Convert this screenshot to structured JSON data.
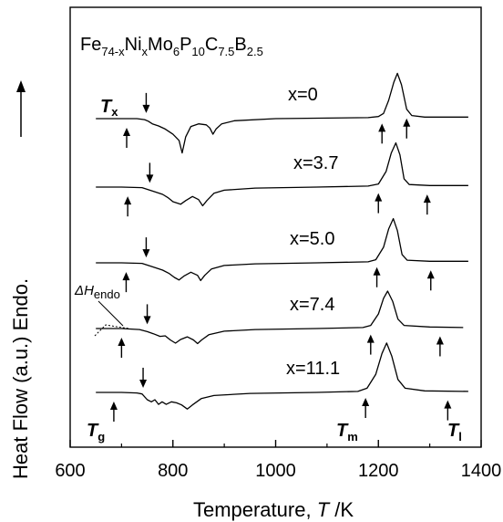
{
  "chart_data": {
    "type": "line",
    "title": "Fe74-xNixMo6P10C7.5B2.5",
    "title_parts": {
      "base": "Fe",
      "s1": "74-x",
      "n1": "Ni",
      "s2": "x",
      "n2": "Mo",
      "s3": "6",
      "n3": "P",
      "s4": "10",
      "n4": "C",
      "s5": "7.5",
      "n5": "B",
      "s6": "2.5"
    },
    "xlabel": "Temperature, T /K",
    "xlabel_parts": {
      "pre": "Temperature, ",
      "var": "T",
      "post": " /K"
    },
    "ylabel": "Heat Flow (a.u.) Endo.",
    "xlim": [
      600,
      1400
    ],
    "x_ticks": [
      600,
      800,
      1000,
      1200,
      1400
    ],
    "x_tick_labels": [
      "600",
      "800",
      "1000",
      "1200",
      "1400"
    ],
    "grid": false,
    "y_ticks_shown": false,
    "annotations": {
      "Tx": {
        "sym": "T",
        "sub": "x"
      },
      "Tg": {
        "sym": "T",
        "sub": "g"
      },
      "Tm": {
        "sym": "T",
        "sub": "m"
      },
      "Tl": {
        "sym": "T",
        "sub": "l"
      },
      "dH": {
        "sym": "ΔH",
        "sub": "endo"
      }
    },
    "series": [
      {
        "name": "x=0",
        "points": [
          [
            650,
            0
          ],
          [
            700,
            0
          ],
          [
            730,
            0
          ],
          [
            745,
            -0.2
          ],
          [
            752,
            -0.5
          ],
          [
            760,
            -1.0
          ],
          [
            772,
            -1.4
          ],
          [
            785,
            -2.0
          ],
          [
            800,
            -3.0
          ],
          [
            812,
            -4.2
          ],
          [
            818,
            -6.6
          ],
          [
            825,
            -3.5
          ],
          [
            835,
            -1.5
          ],
          [
            850,
            -1.0
          ],
          [
            865,
            -1.2
          ],
          [
            872,
            -1.8
          ],
          [
            878,
            -3.0
          ],
          [
            884,
            -2.0
          ],
          [
            895,
            -1.0
          ],
          [
            920,
            -0.4
          ],
          [
            1000,
            0
          ],
          [
            1100,
            0.1
          ],
          [
            1180,
            0.2
          ],
          [
            1200,
            0.4
          ],
          [
            1210,
            1.0
          ],
          [
            1220,
            3.5
          ],
          [
            1230,
            7.0
          ],
          [
            1237,
            8.7
          ],
          [
            1245,
            6.5
          ],
          [
            1255,
            1.8
          ],
          [
            1265,
            0.6
          ],
          [
            1290,
            0.3
          ],
          [
            1375,
            0.3
          ]
        ],
        "arrows": [
          [
            710,
            "Tg"
          ],
          [
            748,
            "Tx"
          ],
          [
            1207,
            "Tm"
          ],
          [
            1255,
            "Tl"
          ]
        ]
      },
      {
        "name": "x=3.7",
        "points": [
          [
            650,
            0
          ],
          [
            700,
            0
          ],
          [
            740,
            -0.1
          ],
          [
            755,
            -0.6
          ],
          [
            768,
            -1.0
          ],
          [
            780,
            -1.4
          ],
          [
            790,
            -2.0
          ],
          [
            800,
            -2.8
          ],
          [
            815,
            -3.3
          ],
          [
            825,
            -2.6
          ],
          [
            838,
            -1.8
          ],
          [
            850,
            -2.4
          ],
          [
            858,
            -3.6
          ],
          [
            866,
            -2.6
          ],
          [
            880,
            -1.2
          ],
          [
            900,
            -0.6
          ],
          [
            960,
            -0.2
          ],
          [
            1080,
            0
          ],
          [
            1180,
            0.2
          ],
          [
            1200,
            0.6
          ],
          [
            1215,
            3.0
          ],
          [
            1225,
            6.5
          ],
          [
            1234,
            8.5
          ],
          [
            1242,
            6.2
          ],
          [
            1250,
            1.6
          ],
          [
            1260,
            0.5
          ],
          [
            1300,
            0.3
          ],
          [
            1375,
            0.3
          ]
        ],
        "arrows": [
          [
            712,
            "Tg"
          ],
          [
            755,
            "Tx"
          ],
          [
            1200,
            "Tm"
          ],
          [
            1295,
            "Tl"
          ]
        ]
      },
      {
        "name": "x=5.0",
        "points": [
          [
            650,
            0
          ],
          [
            700,
            0
          ],
          [
            740,
            -0.1
          ],
          [
            755,
            -0.6
          ],
          [
            768,
            -1.0
          ],
          [
            780,
            -1.4
          ],
          [
            792,
            -2.0
          ],
          [
            803,
            -2.8
          ],
          [
            812,
            -3.3
          ],
          [
            822,
            -2.5
          ],
          [
            835,
            -1.8
          ],
          [
            848,
            -2.4
          ],
          [
            854,
            -3.4
          ],
          [
            862,
            -2.4
          ],
          [
            875,
            -1.2
          ],
          [
            900,
            -0.5
          ],
          [
            960,
            -0.2
          ],
          [
            1080,
            0
          ],
          [
            1180,
            0.2
          ],
          [
            1195,
            0.6
          ],
          [
            1210,
            3.0
          ],
          [
            1220,
            6.5
          ],
          [
            1229,
            8.5
          ],
          [
            1237,
            6.2
          ],
          [
            1246,
            1.6
          ],
          [
            1256,
            0.5
          ],
          [
            1300,
            0.3
          ],
          [
            1375,
            0.3
          ]
        ],
        "arrows": [
          [
            709,
            "Tg"
          ],
          [
            748,
            "Tx"
          ],
          [
            1197,
            "Tm"
          ],
          [
            1302,
            "Tl"
          ]
        ]
      },
      {
        "name": "x=7.4",
        "points": [
          [
            650,
            0
          ],
          [
            700,
            0
          ],
          [
            735,
            -0.2
          ],
          [
            750,
            -0.6
          ],
          [
            762,
            -1.0
          ],
          [
            775,
            -1.5
          ],
          [
            785,
            -1.4
          ],
          [
            795,
            -2.2
          ],
          [
            805,
            -2.8
          ],
          [
            815,
            -2.1
          ],
          [
            828,
            -1.6
          ],
          [
            840,
            -2.2
          ],
          [
            848,
            -2.9
          ],
          [
            856,
            -2.2
          ],
          [
            870,
            -1.2
          ],
          [
            900,
            -0.5
          ],
          [
            960,
            -0.2
          ],
          [
            1080,
            0
          ],
          [
            1170,
            0.2
          ],
          [
            1185,
            0.6
          ],
          [
            1200,
            2.8
          ],
          [
            1210,
            5.8
          ],
          [
            1218,
            7.2
          ],
          [
            1228,
            5.2
          ],
          [
            1238,
            1.8
          ],
          [
            1250,
            0.6
          ],
          [
            1300,
            0.3
          ],
          [
            1365,
            0.2
          ]
        ],
        "arrows": [
          [
            700,
            "Tg"
          ],
          [
            750,
            "Tx"
          ],
          [
            1185,
            "Tm"
          ],
          [
            1320,
            "Tl"
          ]
        ]
      },
      {
        "name": "x=11.1",
        "points": [
          [
            650,
            0
          ],
          [
            700,
            0
          ],
          [
            730,
            -0.1
          ],
          [
            740,
            -0.3
          ],
          [
            750,
            -1.4
          ],
          [
            758,
            -1.8
          ],
          [
            765,
            -1.4
          ],
          [
            772,
            -2.3
          ],
          [
            779,
            -1.8
          ],
          [
            787,
            -2.3
          ],
          [
            797,
            -1.8
          ],
          [
            807,
            -2.0
          ],
          [
            817,
            -2.4
          ],
          [
            828,
            -3.2
          ],
          [
            838,
            -2.4
          ],
          [
            855,
            -1.2
          ],
          [
            880,
            -0.6
          ],
          [
            950,
            -0.2
          ],
          [
            1080,
            0
          ],
          [
            1160,
            0.2
          ],
          [
            1178,
            0.8
          ],
          [
            1195,
            3.5
          ],
          [
            1207,
            7.5
          ],
          [
            1216,
            9.5
          ],
          [
            1226,
            7.0
          ],
          [
            1238,
            2.5
          ],
          [
            1252,
            0.8
          ],
          [
            1290,
            0.3
          ],
          [
            1375,
            0.2
          ]
        ],
        "arrows": [
          [
            685,
            "Tg"
          ],
          [
            742,
            "Tx"
          ],
          [
            1175,
            "Tm"
          ],
          [
            1335,
            "Tl"
          ]
        ]
      }
    ]
  }
}
